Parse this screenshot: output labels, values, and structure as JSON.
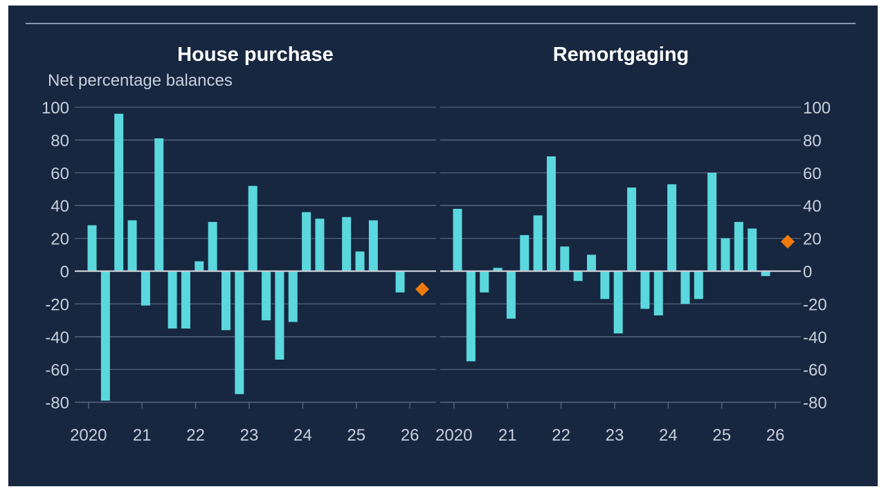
{
  "header": {
    "unit_label": "Net percentage balances"
  },
  "colors": {
    "background": "#172740",
    "bar": "#5ad8dd",
    "marker": "#f07a0b",
    "grid": "#52627a",
    "zero_line": "#c8ccd4",
    "text": "#c9d0db"
  },
  "chart_data": [
    {
      "type": "bar",
      "title": "House purchase",
      "ylabel": "Net percentage balances",
      "xlabel": "",
      "ylim": [
        -80,
        100
      ],
      "yticks": [
        100,
        80,
        60,
        40,
        20,
        0,
        -20,
        -40,
        -60,
        -80
      ],
      "ytick_labels": [
        "100",
        "80",
        "60",
        "40",
        "20",
        "0",
        "-20",
        "-40",
        "-60",
        "-80"
      ],
      "axis_side": "left",
      "grid": true,
      "xtick_labels": [
        "2020",
        "21",
        "22",
        "23",
        "24",
        "25",
        "26"
      ],
      "frequency": "quarterly",
      "start": "2020 Q1",
      "x": [
        "2020Q1",
        "2020Q2",
        "2020Q3",
        "2020Q4",
        "2021Q1",
        "2021Q2",
        "2021Q3",
        "2021Q4",
        "2022Q1",
        "2022Q2",
        "2022Q3",
        "2022Q4",
        "2023Q1",
        "2023Q2",
        "2023Q3",
        "2023Q4",
        "2024Q1",
        "2024Q2",
        "2024Q3",
        "2024Q4",
        "2025Q1",
        "2025Q2",
        "2025Q3",
        "2025Q4"
      ],
      "values": [
        28,
        -79,
        96,
        31,
        -21,
        81,
        -35,
        -35,
        6,
        30,
        -36,
        -75,
        52,
        -30,
        -54,
        -31,
        36,
        32,
        0,
        33,
        12,
        31,
        0,
        -13
      ],
      "expected": {
        "x": "2026Q1",
        "value": -11,
        "marker": "diamond"
      }
    },
    {
      "type": "bar",
      "title": "Remortgaging",
      "ylabel": "",
      "xlabel": "",
      "ylim": [
        -80,
        100
      ],
      "yticks": [
        100,
        80,
        60,
        40,
        20,
        0,
        -20,
        -40,
        -60,
        -80
      ],
      "ytick_labels": [
        "100",
        "80",
        "60",
        "40",
        "20",
        "0",
        "-20",
        "-40",
        "-60",
        "-80"
      ],
      "axis_side": "right",
      "grid": true,
      "xtick_labels": [
        "2020",
        "21",
        "22",
        "23",
        "24",
        "25",
        "26"
      ],
      "frequency": "quarterly",
      "start": "2020 Q1",
      "x": [
        "2020Q1",
        "2020Q2",
        "2020Q3",
        "2020Q4",
        "2021Q1",
        "2021Q2",
        "2021Q3",
        "2021Q4",
        "2022Q1",
        "2022Q2",
        "2022Q3",
        "2022Q4",
        "2023Q1",
        "2023Q2",
        "2023Q3",
        "2023Q4",
        "2024Q1",
        "2024Q2",
        "2024Q3",
        "2024Q4",
        "2025Q1",
        "2025Q2",
        "2025Q3",
        "2025Q4"
      ],
      "values": [
        38,
        -55,
        -13,
        2,
        -29,
        22,
        34,
        70,
        15,
        -6,
        10,
        -17,
        -38,
        51,
        -23,
        -27,
        53,
        -20,
        -17,
        60,
        20,
        30,
        26,
        -3
      ],
      "expected": {
        "x": "2026Q1",
        "value": 18,
        "marker": "diamond"
      }
    }
  ]
}
